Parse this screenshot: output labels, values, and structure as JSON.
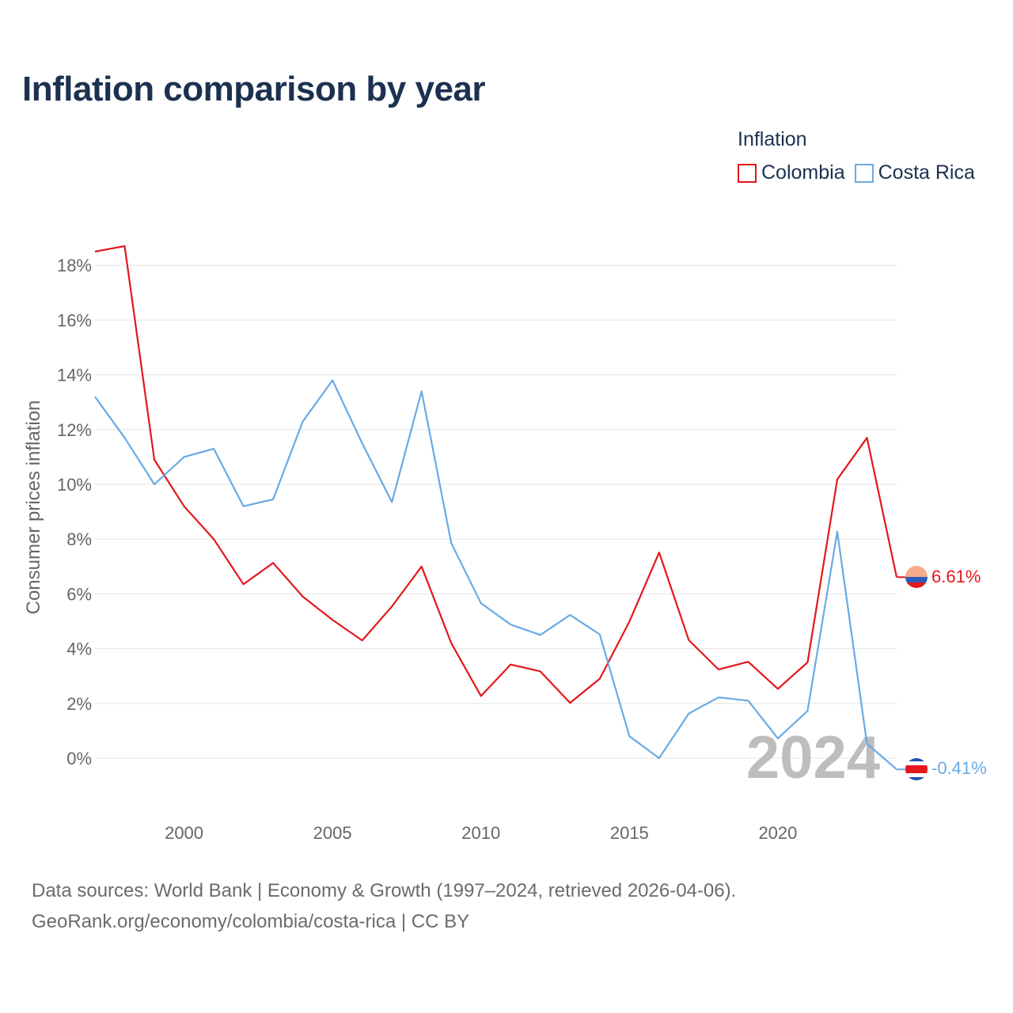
{
  "title": "Inflation comparison by year",
  "legend": {
    "title": "Inflation",
    "items": [
      {
        "label": "Colombia",
        "color": "#e3171c"
      },
      {
        "label": "Costa Rica",
        "color": "#6aaae4"
      }
    ]
  },
  "current_year": "2024",
  "end_labels": {
    "colombia": "6.61%",
    "costa_rica": "-0.41%"
  },
  "footer": {
    "line1": "Data sources: World Bank | Economy & Growth (1997–2024, retrieved 2026-04-06).",
    "line2": "GeoRank.org/economy/colombia/costa-rica | CC BY"
  },
  "chart_data": {
    "type": "line",
    "title": "Inflation comparison by year",
    "xlabel": "",
    "ylabel": "Consumer prices inflation",
    "x": [
      1997,
      1998,
      1999,
      2000,
      2001,
      2002,
      2003,
      2004,
      2005,
      2006,
      2007,
      2008,
      2009,
      2010,
      2011,
      2012,
      2013,
      2014,
      2015,
      2016,
      2017,
      2018,
      2019,
      2020,
      2021,
      2022,
      2023,
      2024
    ],
    "xlim": [
      1997,
      2024
    ],
    "ylim": [
      -2,
      19
    ],
    "x_ticks": [
      2000,
      2005,
      2010,
      2015,
      2020
    ],
    "y_ticks": [
      0,
      2,
      4,
      6,
      8,
      10,
      12,
      14,
      16,
      18
    ],
    "y_tick_labels": [
      "0%",
      "2%",
      "4%",
      "6%",
      "8%",
      "10%",
      "12%",
      "14%",
      "16%",
      "18%"
    ],
    "grid": true,
    "legend_position": "top-right",
    "series": [
      {
        "name": "Colombia",
        "color": "#e3171c",
        "values": [
          18.5,
          18.7,
          10.9,
          9.2,
          8.0,
          6.35,
          7.13,
          5.9,
          5.05,
          4.3,
          5.54,
          7.0,
          4.2,
          2.27,
          3.42,
          3.17,
          2.02,
          2.9,
          4.99,
          7.51,
          4.31,
          3.24,
          3.52,
          2.53,
          3.5,
          10.18,
          11.7,
          6.61
        ]
      },
      {
        "name": "Costa Rica",
        "color": "#6aaae4",
        "values": [
          13.2,
          11.7,
          10.0,
          11.0,
          11.3,
          9.2,
          9.45,
          12.3,
          13.8,
          11.5,
          9.35,
          13.4,
          7.85,
          5.66,
          4.88,
          4.5,
          5.23,
          4.52,
          0.8,
          0.0,
          1.63,
          2.22,
          2.1,
          0.72,
          1.73,
          8.27,
          0.53,
          -0.41
        ]
      }
    ]
  }
}
